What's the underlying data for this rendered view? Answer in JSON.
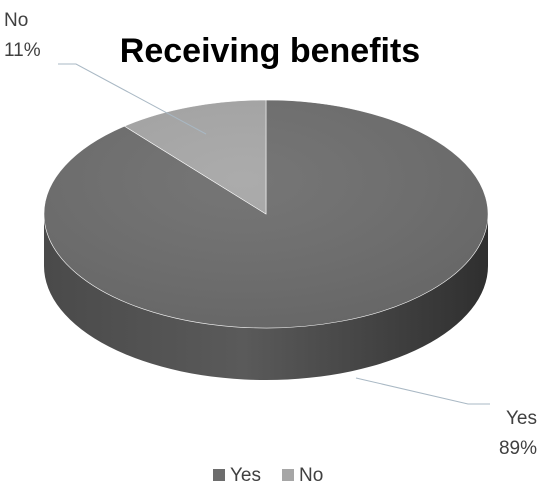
{
  "chart_data": {
    "type": "pie",
    "title": "Receiving benefits",
    "categories": [
      "Yes",
      "No"
    ],
    "values": [
      89,
      11
    ],
    "value_labels": [
      "89%",
      "11%"
    ],
    "colors": [
      "#6d6d6d",
      "#a6a6a6"
    ],
    "legend": {
      "position": "bottom",
      "entries": [
        "Yes",
        "No"
      ]
    },
    "style": "3d"
  }
}
